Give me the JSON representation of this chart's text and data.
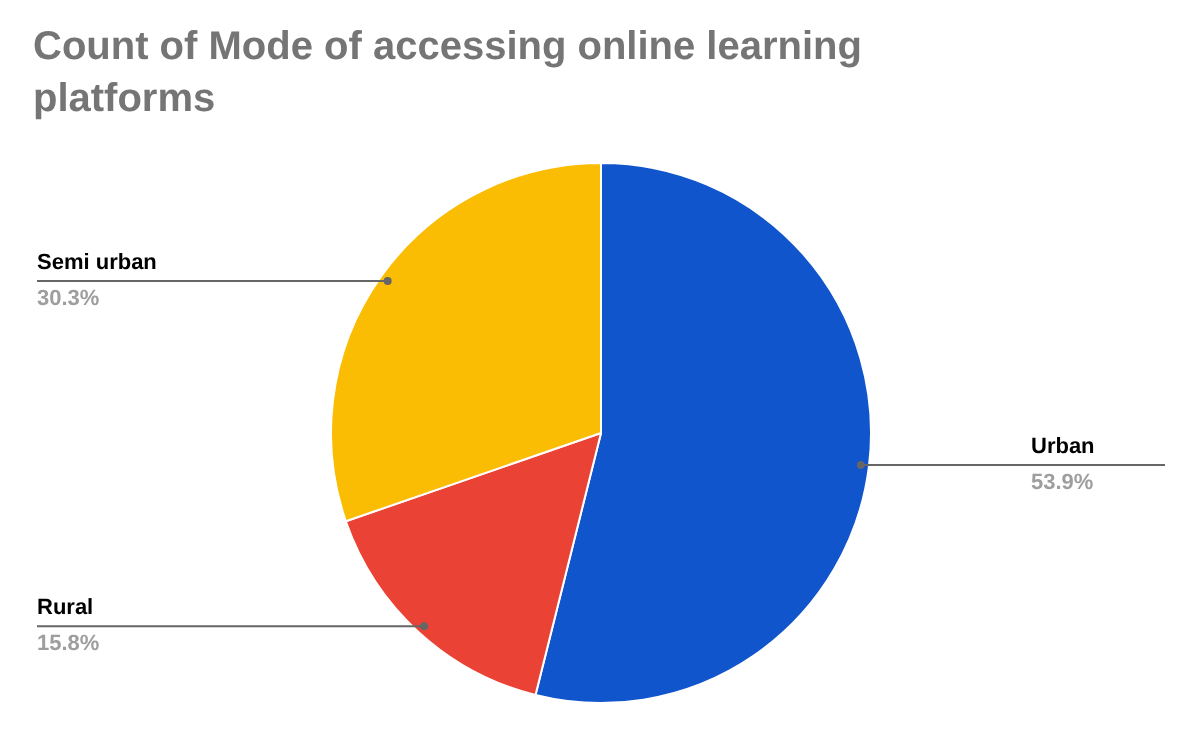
{
  "chart_data": {
    "type": "pie",
    "title": "Count of Mode of accessing online learning platforms",
    "categories": [
      "Urban",
      "Rural",
      "Semi urban"
    ],
    "values": [
      53.9,
      15.8,
      30.3
    ],
    "value_labels": [
      "53.9%",
      "15.8%",
      "30.3%"
    ],
    "colors": [
      "#1155cc",
      "#ea4335",
      "#fbbc04"
    ]
  }
}
